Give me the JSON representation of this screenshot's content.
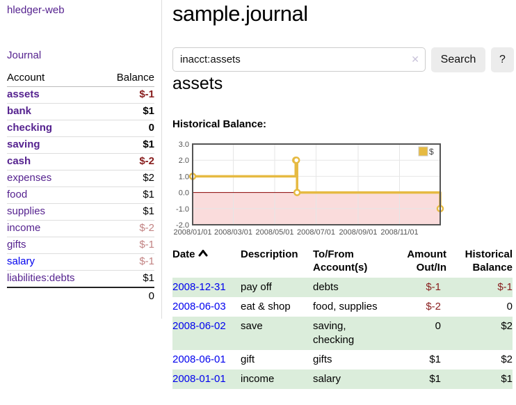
{
  "app": {
    "title": "hledger-web"
  },
  "colors": {
    "purple_link": "#55228f",
    "blue_link": "#0000ee",
    "negative_strong": "#881d1d",
    "negative_muted": "#c28383",
    "row_stripe_green": "#dbeddb",
    "chart_series_gold": "#e6ba42",
    "chart_negative_fill": "#fadcdc",
    "chart_zero_line": "#8b0000",
    "button_bg": "#ececec"
  },
  "sidebar": {
    "journal_label": "Journal",
    "accounts_table": {
      "headers": [
        "Account",
        "Balance"
      ],
      "rows": [
        {
          "account": "assets",
          "depth": 1,
          "bold": true,
          "balance": "$-1",
          "negative": true
        },
        {
          "account": "bank",
          "depth": 2,
          "bold": true,
          "balance": "$1"
        },
        {
          "account": "checking",
          "depth": 3,
          "bold": true,
          "balance": "0"
        },
        {
          "account": "saving",
          "depth": 3,
          "bold": true,
          "balance": "$1"
        },
        {
          "account": "cash",
          "depth": 2,
          "bold": true,
          "balance": "$-2",
          "negative": true
        },
        {
          "account": "expenses",
          "depth": 1,
          "balance": "$2"
        },
        {
          "account": "food",
          "depth": 2,
          "balance": "$1"
        },
        {
          "account": "supplies",
          "depth": 2,
          "balance": "$1"
        },
        {
          "account": "income",
          "depth": 1,
          "balance": "$-2",
          "negative": true,
          "muted": true
        },
        {
          "account": "gifts",
          "depth": 2,
          "balance": "$-1",
          "negative": true,
          "muted": true
        },
        {
          "account": "salary",
          "depth": 2,
          "balance": "$-1",
          "negative": true,
          "muted": true,
          "link": "blue"
        },
        {
          "account": "liabilities:debts",
          "depth": 1,
          "balance": "$1"
        }
      ],
      "total": "0"
    }
  },
  "main": {
    "title": "sample.journal",
    "search": {
      "value": "inacct:assets",
      "clear_icon": "✕",
      "button_label": "Search",
      "help_label": "?"
    },
    "account_heading": "assets",
    "register_table": {
      "headers": [
        "Date",
        "Description",
        "To/From Account(s)",
        "Amount Out/In",
        "Historical Balance"
      ],
      "rows": [
        {
          "date": "2008-12-31",
          "description": "pay off",
          "accounts": "debts",
          "amount": "$-1",
          "amount_negative": true,
          "balance": "$-1",
          "balance_negative": true
        },
        {
          "date": "2008-06-03",
          "description": "eat & shop",
          "accounts": "food, supplies",
          "amount": "$-2",
          "amount_negative": true,
          "balance": "0"
        },
        {
          "date": "2008-06-02",
          "description": "save",
          "accounts": "saving, checking",
          "amount": "0",
          "balance": "$2"
        },
        {
          "date": "2008-06-01",
          "description": "gift",
          "accounts": "gifts",
          "amount": "$1",
          "balance": "$2"
        },
        {
          "date": "2008-01-01",
          "description": "income",
          "accounts": "salary",
          "amount": "$1",
          "balance": "$1"
        }
      ]
    }
  },
  "chart_data": {
    "type": "line",
    "title": "Historical Balance:",
    "style": "steps",
    "series": [
      {
        "name": "$",
        "color": "#e6ba42",
        "points": [
          [
            "2008-01-01",
            1
          ],
          [
            "2008-06-01",
            2
          ],
          [
            "2008-06-02",
            2
          ],
          [
            "2008-06-03",
            0
          ],
          [
            "2008-12-31",
            -1
          ]
        ]
      }
    ],
    "xlim": [
      "2008-01-01",
      "2008-12-31"
    ],
    "ylim": [
      -2,
      3
    ],
    "x_ticks": [
      "2008/01/01",
      "2008/03/01",
      "2008/05/01",
      "2008/07/01",
      "2008/09/01",
      "2008/11/01"
    ],
    "y_ticks": [
      3.0,
      2.0,
      1.0,
      0.0,
      -1.0,
      -2.0
    ],
    "grid": true,
    "legend_position": "top-right",
    "legend_label": "$",
    "negative_region_fill": "#fadcdc",
    "zero_line_color": "#8b0000",
    "axis_text_color": "#545454",
    "grid_color": "#e6e6e6",
    "border_color": "#545454"
  }
}
